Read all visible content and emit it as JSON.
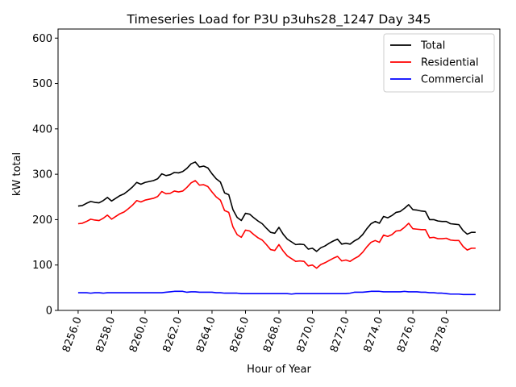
{
  "chart_data": {
    "type": "line",
    "title": "Timeseries Load for P3U p3uhs28_1247  Day 345",
    "xlabel": "Hour of Year",
    "ylabel": "kW total",
    "xlim": [
      8254.8,
      8281.2
    ],
    "ylim": [
      0,
      620
    ],
    "xticks": [
      8256,
      8258,
      8260,
      8262,
      8264,
      8266,
      8268,
      8270,
      8272,
      8274,
      8276,
      8278
    ],
    "xtick_labels": [
      "8256.0",
      "8258.0",
      "8260.0",
      "8262.0",
      "8264.0",
      "8266.0",
      "8268.0",
      "8270.0",
      "8272.0",
      "8274.0",
      "8276.0",
      "8278.0"
    ],
    "yticks": [
      0,
      100,
      200,
      300,
      400,
      500,
      600
    ],
    "ytick_labels": [
      "0",
      "100",
      "200",
      "300",
      "400",
      "500",
      "600"
    ],
    "legend_position": "top-right",
    "x": [
      8256.0,
      8256.25,
      8256.5,
      8256.75,
      8257.0,
      8257.25,
      8257.5,
      8257.75,
      8258.0,
      8258.25,
      8258.5,
      8258.75,
      8259.0,
      8259.25,
      8259.5,
      8259.75,
      8260.0,
      8260.25,
      8260.5,
      8260.75,
      8261.0,
      8261.25,
      8261.5,
      8261.75,
      8262.0,
      8262.25,
      8262.5,
      8262.75,
      8263.0,
      8263.25,
      8263.5,
      8263.75,
      8264.0,
      8264.25,
      8264.5,
      8264.75,
      8265.0,
      8265.25,
      8265.5,
      8265.75,
      8266.0,
      8266.25,
      8266.5,
      8266.75,
      8267.0,
      8267.25,
      8267.5,
      8267.75,
      8268.0,
      8268.25,
      8268.5,
      8268.75,
      8269.0,
      8269.25,
      8269.5,
      8269.75,
      8270.0,
      8270.25,
      8270.5,
      8270.75,
      8271.0,
      8271.25,
      8271.5,
      8271.75,
      8272.0,
      8272.25,
      8272.5,
      8272.75,
      8273.0,
      8273.25,
      8273.5,
      8273.75,
      8274.0,
      8274.25,
      8274.5,
      8274.75,
      8275.0,
      8275.25,
      8275.5,
      8275.75,
      8276.0,
      8276.25,
      8276.5,
      8276.75,
      8277.0,
      8277.25,
      8277.5,
      8277.75,
      8278.0,
      8278.25,
      8278.5,
      8278.75,
      8279.0,
      8279.25,
      8279.5,
      8279.75
    ],
    "series": [
      {
        "name": "Total",
        "color": "#000000",
        "values": [
          230,
          231,
          236,
          240,
          238,
          237,
          242,
          249,
          241,
          247,
          253,
          257,
          264,
          272,
          282,
          278,
          282,
          284,
          286,
          290,
          301,
          297,
          299,
          304,
          303,
          306,
          313,
          323,
          327,
          316,
          318,
          314,
          301,
          290,
          283,
          259,
          255,
          222,
          205,
          198,
          214,
          212,
          204,
          197,
          191,
          181,
          172,
          170,
          183,
          168,
          157,
          151,
          145,
          146,
          145,
          135,
          137,
          130,
          138,
          142,
          148,
          153,
          157,
          146,
          148,
          146,
          153,
          158,
          167,
          180,
          191,
          196,
          192,
          207,
          204,
          209,
          216,
          218,
          225,
          233,
          222,
          221,
          219,
          218,
          200,
          200,
          197,
          196,
          196,
          191,
          190,
          189,
          176,
          168,
          172,
          172
        ]
      },
      {
        "name": "Residential",
        "color": "#ff0000",
        "values": [
          191,
          192,
          196,
          201,
          199,
          198,
          203,
          210,
          201,
          207,
          213,
          217,
          224,
          232,
          242,
          239,
          243,
          245,
          247,
          251,
          262,
          257,
          258,
          263,
          261,
          263,
          271,
          281,
          286,
          276,
          277,
          273,
          261,
          250,
          243,
          220,
          216,
          184,
          167,
          161,
          177,
          175,
          167,
          160,
          155,
          145,
          134,
          132,
          145,
          131,
          120,
          114,
          108,
          109,
          108,
          98,
          100,
          93,
          101,
          105,
          110,
          115,
          119,
          109,
          111,
          108,
          114,
          119,
          128,
          140,
          150,
          154,
          150,
          166,
          163,
          167,
          175,
          176,
          183,
          192,
          180,
          179,
          178,
          178,
          160,
          161,
          158,
          158,
          159,
          155,
          154,
          154,
          141,
          133,
          137,
          137
        ]
      },
      {
        "name": "Commercial",
        "color": "#0000ff",
        "values": [
          39,
          39,
          39,
          38,
          39,
          39,
          38,
          39,
          39,
          39,
          39,
          39,
          39,
          39,
          39,
          39,
          39,
          39,
          39,
          39,
          39,
          40,
          41,
          42,
          42,
          42,
          40,
          41,
          41,
          40,
          40,
          40,
          40,
          39,
          39,
          38,
          38,
          38,
          38,
          37,
          37,
          37,
          37,
          37,
          37,
          37,
          37,
          37,
          37,
          37,
          37,
          36,
          37,
          37,
          37,
          37,
          37,
          37,
          37,
          37,
          37,
          37,
          37,
          37,
          37,
          38,
          40,
          40,
          40,
          41,
          42,
          42,
          42,
          41,
          41,
          41,
          41,
          41,
          42,
          41,
          41,
          41,
          40,
          40,
          39,
          39,
          38,
          38,
          37,
          36,
          36,
          36,
          35,
          35,
          35,
          35
        ]
      }
    ]
  }
}
